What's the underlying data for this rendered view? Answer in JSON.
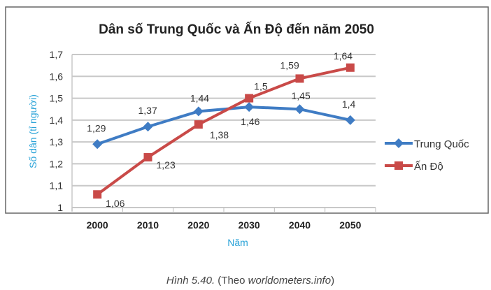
{
  "chart_data": {
    "type": "line",
    "title": "Dân số Trung Quốc và Ấn Độ đến năm 2050",
    "xlabel": "Năm",
    "ylabel": "Số dân (tỉ người)",
    "categories": [
      "2000",
      "2010",
      "2020",
      "2030",
      "2040",
      "2050"
    ],
    "ylim": [
      1,
      1.7
    ],
    "yticks": [
      "1",
      "1,1",
      "1,2",
      "1,3",
      "1,4",
      "1,5",
      "1,6",
      "1,7"
    ],
    "grid": true,
    "legend": "right",
    "series": [
      {
        "name": "Trung Quốc",
        "color": "#3f7cc4",
        "marker": "diamond",
        "values": [
          1.29,
          1.37,
          1.44,
          1.46,
          1.45,
          1.4
        ],
        "labels": [
          "1,29",
          "1,37",
          "1,44",
          "1,46",
          "1,45",
          "1,4"
        ]
      },
      {
        "name": "Ấn Độ",
        "color": "#c94a48",
        "marker": "square",
        "values": [
          1.06,
          1.23,
          1.38,
          1.5,
          1.59,
          1.64
        ],
        "labels": [
          "1,06",
          "1,23",
          "1,38",
          "1,5",
          "1,59",
          "1,64"
        ]
      }
    ]
  },
  "caption": {
    "prefix": "Hình 5.40.",
    "middle": " (Theo ",
    "source": "worldometers.info",
    "suffix": ")"
  }
}
